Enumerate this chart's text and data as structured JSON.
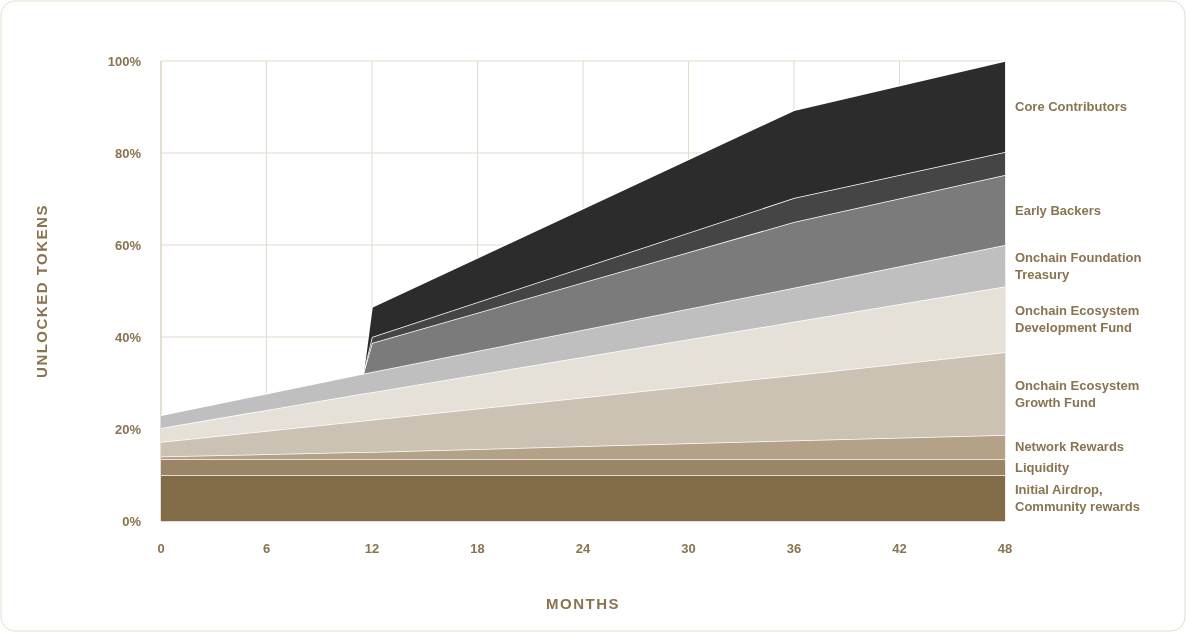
{
  "chart_data": {
    "type": "area",
    "stacked": true,
    "xlabel": "MONTHS",
    "ylabel": "UNLOCKED TOKENS",
    "x": [
      0,
      11.5,
      12,
      36,
      48
    ],
    "series": [
      {
        "name": "Initial Airdrop, Community rewards",
        "color": "#826c48",
        "values": [
          10,
          10,
          10,
          10,
          10
        ]
      },
      {
        "name": "Liquidity",
        "color": "#9a8566",
        "values": [
          3.5,
          3.5,
          3.5,
          3.5,
          3.5
        ]
      },
      {
        "name": "Network Rewards",
        "color": "#b3a287",
        "values": [
          0.5,
          1.5,
          1.5,
          4,
          5.2
        ]
      },
      {
        "name": "Onchain Ecosystem Growth Fund",
        "color": "#cbc2b3",
        "values": [
          3.2,
          6.8,
          7,
          14.2,
          18
        ]
      },
      {
        "name": "Onchain Ecosystem Development Fund",
        "color": "#e5e1d8",
        "values": [
          3,
          5.9,
          6,
          11.6,
          14.3
        ]
      },
      {
        "name": "Onchain Foundation Treasury",
        "color": "#bfbfbf",
        "values": [
          2.8,
          4.3,
          4.4,
          7.4,
          9
        ]
      },
      {
        "name": "Early Backers",
        "color": "#7b7b7b",
        "values": [
          null,
          0,
          6.3,
          14.3,
          15.2
        ]
      },
      {
        "color": "#454545",
        "values": [
          null,
          0,
          1.3,
          5.2,
          5
        ]
      },
      {
        "name": "Core Contributors",
        "color": "#2c2c2c",
        "values": [
          null,
          0,
          6.5,
          19.1,
          19.8
        ]
      }
    ],
    "xlim": [
      0,
      48
    ],
    "xticks": [
      0,
      6,
      12,
      18,
      24,
      30,
      36,
      42,
      48
    ],
    "ylim": [
      0,
      100
    ],
    "yticks": [
      {
        "value": 0,
        "label": "0%"
      },
      {
        "value": 20,
        "label": "20%"
      },
      {
        "value": 40,
        "label": "40%"
      },
      {
        "value": 60,
        "label": "60%"
      },
      {
        "value": 80,
        "label": "80%"
      },
      {
        "value": 100,
        "label": "100%"
      }
    ],
    "grid": true,
    "legend": "right"
  }
}
